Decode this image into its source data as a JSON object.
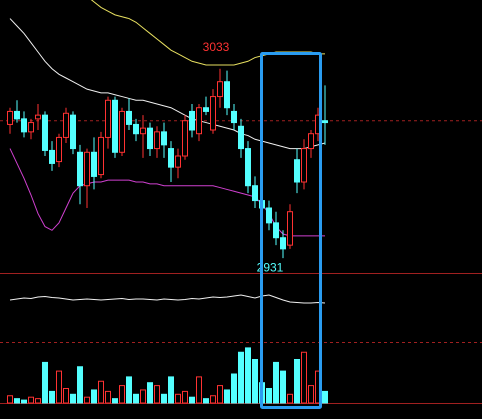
{
  "chart_data": {
    "type": "candlestick",
    "up_color": "#ff3232",
    "down_color": "#54ffff",
    "ylim": [
      2923,
      3070
    ],
    "candles": [
      [
        3003,
        3012,
        2998,
        3010
      ],
      [
        3010,
        3016,
        3004,
        3006
      ],
      [
        3006,
        3010,
        2996,
        2999
      ],
      [
        2999,
        3006,
        2995,
        3004
      ],
      [
        3006,
        3014,
        3000,
        3008
      ],
      [
        3008,
        3010,
        2986,
        2989
      ],
      [
        2989,
        2994,
        2978,
        2982
      ],
      [
        2983,
        2998,
        2980,
        2996
      ],
      [
        2996,
        3012,
        2993,
        3009
      ],
      [
        3008,
        3010,
        2987,
        2990
      ],
      [
        2988,
        2992,
        2960,
        2970
      ],
      [
        2970,
        2990,
        2958,
        2988
      ],
      [
        2988,
        2996,
        2968,
        2975
      ],
      [
        2976,
        2999,
        2974,
        2996
      ],
      [
        2996,
        3018,
        2990,
        3016
      ],
      [
        3016,
        3018,
        2985,
        2988
      ],
      [
        2988,
        3012,
        2986,
        3010
      ],
      [
        3010,
        3017,
        3000,
        3003
      ],
      [
        3003,
        3006,
        2994,
        2998
      ],
      [
        2998,
        3008,
        2985,
        3001
      ],
      [
        3001,
        3004,
        2986,
        2990
      ],
      [
        2990,
        3002,
        2985,
        2999
      ],
      [
        2999,
        3004,
        2985,
        2992
      ],
      [
        2990,
        2994,
        2972,
        2980
      ],
      [
        2980,
        2990,
        2974,
        2986
      ],
      [
        2986,
        3008,
        2984,
        3005
      ],
      [
        3010,
        3014,
        2996,
        3000
      ],
      [
        2998,
        3014,
        2994,
        3012
      ],
      [
        3012,
        3018,
        3008,
        3010
      ],
      [
        3000,
        3022,
        2998,
        3018
      ],
      [
        3018,
        3033,
        3012,
        3026
      ],
      [
        3026,
        3032,
        3008,
        3012
      ],
      [
        3010,
        3014,
        3000,
        3004
      ],
      [
        3002,
        3006,
        2985,
        2990
      ],
      [
        2990,
        2994,
        2966,
        2970
      ],
      [
        2970,
        2975,
        2958,
        2962
      ],
      [
        2962,
        2968,
        2954,
        2958
      ],
      [
        2958,
        2962,
        2946,
        2950
      ],
      [
        2950,
        2956,
        2938,
        2942
      ],
      [
        2942,
        2946,
        2931,
        2936
      ],
      [
        2938,
        2960,
        2936,
        2956
      ],
      [
        2984,
        2990,
        2966,
        2972
      ],
      [
        2972,
        2995,
        2968,
        2990
      ],
      [
        2990,
        3000,
        2985,
        2998
      ],
      [
        2998,
        3012,
        2994,
        3008
      ],
      [
        3005,
        3024,
        2992,
        3004
      ]
    ],
    "bands": [
      {
        "name": "upper",
        "color": "#e8e060",
        "values": [
          3120,
          3115,
          3110,
          3104,
          3099,
          3094,
          3090,
          3086,
          3082,
          3078,
          3075,
          3072,
          3069,
          3066,
          3064,
          3062,
          3061,
          3060,
          3058,
          3055,
          3052,
          3049,
          3046,
          3043,
          3041,
          3039,
          3037,
          3036,
          3035,
          3035,
          3035,
          3035,
          3035,
          3036,
          3037,
          3039,
          3040,
          3041,
          3042,
          3042,
          3042,
          3042,
          3042,
          3042,
          3041,
          3041
        ]
      },
      {
        "name": "middle",
        "color": "#f0f0f0",
        "values": [
          3060,
          3056,
          3052,
          3047,
          3042,
          3037,
          3033,
          3030,
          3028,
          3026,
          3024,
          3022,
          3021,
          3020,
          3020,
          3019,
          3018,
          3017,
          3016,
          3016,
          3015,
          3014,
          3013,
          3012,
          3010,
          3008,
          3006,
          3005,
          3004,
          3003,
          3002,
          3001,
          3000,
          2998,
          2997,
          2995,
          2994,
          2993,
          2992,
          2991,
          2990,
          2990,
          2990,
          2991,
          2992,
          2993
        ]
      },
      {
        "name": "lower",
        "color": "#d040d0",
        "values": [
          2990,
          2982,
          2974,
          2965,
          2955,
          2948,
          2946,
          2950,
          2958,
          2966,
          2970,
          2971,
          2972,
          2972,
          2973,
          2973,
          2973,
          2973,
          2972,
          2972,
          2971,
          2971,
          2970,
          2970,
          2970,
          2970,
          2970,
          2970,
          2970,
          2970,
          2969,
          2968,
          2967,
          2966,
          2965,
          2964,
          2960,
          2955,
          2948,
          2944,
          2943,
          2943,
          2943,
          2943,
          2943,
          2943
        ]
      }
    ],
    "ref_price": 3005,
    "annotations": [
      3033,
      2931
    ],
    "osc_ylim": [
      0,
      100
    ],
    "oscillator": [
      50,
      52,
      54,
      53,
      56,
      57,
      55,
      54,
      52,
      50,
      51,
      52,
      51,
      50,
      51,
      52,
      53,
      51,
      52,
      52,
      51,
      50,
      52,
      51,
      50,
      51,
      53,
      52,
      54,
      56,
      55,
      56,
      58,
      60,
      57,
      54,
      58,
      60,
      55,
      50,
      46,
      45,
      44,
      44,
      45,
      44
    ],
    "vol_ylim": [
      0,
      40
    ],
    "volumes": [
      5,
      3,
      2,
      4,
      3,
      28,
      8,
      22,
      10,
      6,
      25,
      4,
      9,
      15,
      8,
      3,
      12,
      18,
      6,
      9,
      14,
      12,
      6,
      18,
      6,
      8,
      4,
      18,
      3,
      5,
      12,
      9,
      20,
      35,
      38,
      30,
      14,
      10,
      28,
      22,
      6,
      30,
      35,
      12,
      22,
      8
    ]
  }
}
